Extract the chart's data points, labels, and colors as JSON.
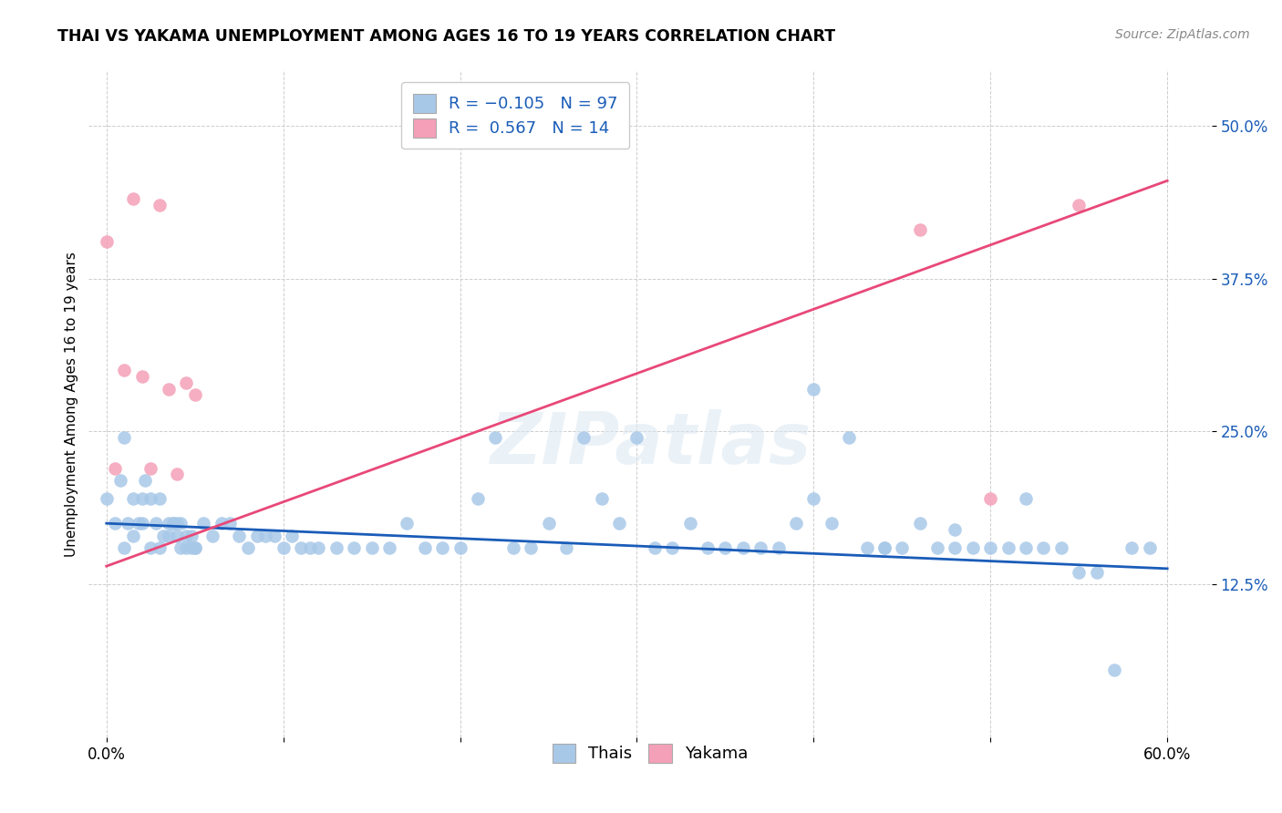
{
  "title": "THAI VS YAKAMA UNEMPLOYMENT AMONG AGES 16 TO 19 YEARS CORRELATION CHART",
  "source": "Source: ZipAtlas.com",
  "ylabel": "Unemployment Among Ages 16 to 19 years",
  "thai_color": "#a8c8e8",
  "yakama_color": "#f4a0b8",
  "thai_line_color": "#1a5cb8",
  "yakama_line_color": "#e84878",
  "xlim": [
    0.0,
    0.6
  ],
  "ylim": [
    0.0,
    0.52
  ],
  "yticks": [
    0.125,
    0.25,
    0.375,
    0.5
  ],
  "ytick_labels": [
    "12.5%",
    "25.0%",
    "37.5%",
    "50.0%"
  ],
  "xtick_labels": [
    "0.0%",
    "",
    "",
    "",
    "",
    "",
    "60.0%"
  ],
  "xtick_vals": [
    0.0,
    0.1,
    0.2,
    0.3,
    0.4,
    0.5,
    0.6
  ],
  "thai_line_x0": 0.0,
  "thai_line_x1": 0.6,
  "thai_line_y0": 0.175,
  "thai_line_y1": 0.138,
  "yakama_line_x0": 0.0,
  "yakama_line_x1": 0.6,
  "yakama_line_y0": 0.14,
  "yakama_line_y1": 0.455,
  "thai_x": [
    0.0,
    0.005,
    0.008,
    0.01,
    0.012,
    0.015,
    0.018,
    0.02,
    0.022,
    0.025,
    0.028,
    0.03,
    0.032,
    0.035,
    0.038,
    0.04,
    0.042,
    0.045,
    0.048,
    0.05,
    0.01,
    0.015,
    0.02,
    0.025,
    0.03,
    0.035,
    0.038,
    0.04,
    0.042,
    0.045,
    0.048,
    0.05,
    0.055,
    0.06,
    0.065,
    0.07,
    0.075,
    0.08,
    0.085,
    0.09,
    0.095,
    0.1,
    0.105,
    0.11,
    0.115,
    0.12,
    0.13,
    0.14,
    0.15,
    0.16,
    0.17,
    0.18,
    0.19,
    0.2,
    0.21,
    0.22,
    0.23,
    0.24,
    0.25,
    0.26,
    0.27,
    0.28,
    0.29,
    0.3,
    0.31,
    0.32,
    0.33,
    0.34,
    0.35,
    0.36,
    0.37,
    0.38,
    0.39,
    0.4,
    0.41,
    0.42,
    0.43,
    0.44,
    0.45,
    0.46,
    0.47,
    0.48,
    0.49,
    0.5,
    0.51,
    0.52,
    0.53,
    0.54,
    0.55,
    0.56,
    0.57,
    0.58,
    0.59,
    0.52,
    0.48,
    0.44,
    0.4
  ],
  "thai_y": [
    0.195,
    0.175,
    0.21,
    0.155,
    0.175,
    0.165,
    0.175,
    0.175,
    0.21,
    0.155,
    0.175,
    0.155,
    0.165,
    0.165,
    0.175,
    0.165,
    0.175,
    0.155,
    0.165,
    0.155,
    0.245,
    0.195,
    0.195,
    0.195,
    0.195,
    0.175,
    0.175,
    0.175,
    0.155,
    0.165,
    0.155,
    0.155,
    0.175,
    0.165,
    0.175,
    0.175,
    0.165,
    0.155,
    0.165,
    0.165,
    0.165,
    0.155,
    0.165,
    0.155,
    0.155,
    0.155,
    0.155,
    0.155,
    0.155,
    0.155,
    0.175,
    0.155,
    0.155,
    0.155,
    0.195,
    0.245,
    0.155,
    0.155,
    0.175,
    0.155,
    0.245,
    0.195,
    0.175,
    0.245,
    0.155,
    0.155,
    0.175,
    0.155,
    0.155,
    0.155,
    0.155,
    0.155,
    0.175,
    0.195,
    0.175,
    0.245,
    0.155,
    0.155,
    0.155,
    0.175,
    0.155,
    0.155,
    0.155,
    0.155,
    0.155,
    0.155,
    0.155,
    0.155,
    0.135,
    0.135,
    0.055,
    0.155,
    0.155,
    0.195,
    0.17,
    0.155,
    0.285
  ],
  "yakama_x": [
    0.0,
    0.005,
    0.01,
    0.015,
    0.02,
    0.025,
    0.03,
    0.035,
    0.04,
    0.045,
    0.05,
    0.46,
    0.5,
    0.55
  ],
  "yakama_y": [
    0.405,
    0.22,
    0.3,
    0.44,
    0.295,
    0.22,
    0.435,
    0.285,
    0.215,
    0.29,
    0.28,
    0.415,
    0.195,
    0.435
  ]
}
